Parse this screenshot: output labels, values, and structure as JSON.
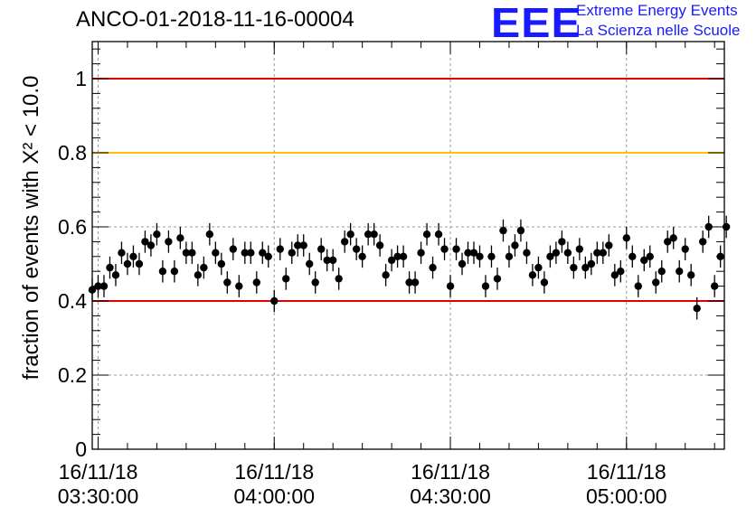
{
  "title": "ANCO-01-2018-11-16-00004",
  "logo": {
    "mark": "EEE",
    "line1": "Extreme Energy Events",
    "line2": "La Scienza nelle Scuole",
    "color": "#1a1aff"
  },
  "chart_data": {
    "type": "scatter",
    "title": "ANCO-01-2018-11-16-00004",
    "ylabel": "fraction of events with X² < 10.0",
    "xlabel": "",
    "ylim": [
      0,
      1.1
    ],
    "yticks": [
      {
        "value": 0,
        "label": "0"
      },
      {
        "value": 0.2,
        "label": "0.2"
      },
      {
        "value": 0.4,
        "label": "0.4"
      },
      {
        "value": 0.6,
        "label": "0.6"
      },
      {
        "value": 0.8,
        "label": "0.8"
      },
      {
        "value": 1,
        "label": "1"
      }
    ],
    "xlim": [
      "16/11/18 03:29:00",
      "16/11/18 05:16:40"
    ],
    "xticks": [
      {
        "value": "16/11/18 03:30:00",
        "date": "16/11/18",
        "time": "03:30:00"
      },
      {
        "value": "16/11/18 04:00:00",
        "date": "16/11/18",
        "time": "04:00:00"
      },
      {
        "value": "16/11/18 04:30:00",
        "date": "16/11/18",
        "time": "04:30:00"
      },
      {
        "value": "16/11/18 05:00:00",
        "date": "16/11/18",
        "time": "05:00:00"
      }
    ],
    "grid": true,
    "reference_lines": [
      {
        "y": 1.0,
        "color": "#e00000"
      },
      {
        "y": 0.8,
        "color": "#ffc000"
      },
      {
        "y": 0.4,
        "color": "#e00000"
      }
    ],
    "series": [
      {
        "x_start": "16/11/18 03:29:00",
        "x_step_minutes": 1,
        "y": [
          0.43,
          0.44,
          0.44,
          0.49,
          0.47,
          0.53,
          0.5,
          0.52,
          0.5,
          0.56,
          0.55,
          0.58,
          0.48,
          0.56,
          0.48,
          0.57,
          0.53,
          0.53,
          0.47,
          0.49,
          0.58,
          0.53,
          0.5,
          0.45,
          0.54,
          0.44,
          0.53,
          0.53,
          0.45,
          0.53,
          0.52,
          0.4,
          0.54,
          0.46,
          0.53,
          0.55,
          0.55,
          0.5,
          0.45,
          0.54,
          0.51,
          0.51,
          0.46,
          0.56,
          0.58,
          0.54,
          0.52,
          0.58,
          0.58,
          0.55,
          0.47,
          0.51,
          0.52,
          0.52,
          0.45,
          0.45,
          0.53,
          0.58,
          0.49,
          0.58,
          0.54,
          0.44,
          0.54,
          0.5,
          0.53,
          0.53,
          0.52,
          0.44,
          0.52,
          0.46,
          0.59,
          0.52,
          0.55,
          0.59,
          0.53,
          0.47,
          0.49,
          0.45,
          0.52,
          0.53,
          0.56,
          0.53,
          0.49,
          0.54,
          0.49,
          0.5,
          0.53,
          0.53,
          0.55,
          0.47,
          0.48,
          0.57,
          0.52,
          0.44,
          0.51,
          0.52,
          0.45,
          0.48,
          0.56,
          0.57,
          0.48,
          0.54,
          0.47,
          0.38,
          0.56,
          0.6,
          0.44,
          0.52,
          0.6
        ],
        "yerr": 0.03,
        "color": "#000000"
      }
    ]
  }
}
